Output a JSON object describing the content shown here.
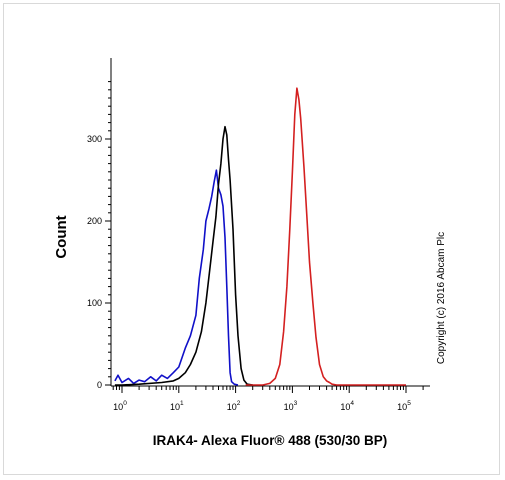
{
  "chart_data": {
    "type": "line",
    "xlabel": "IRAK4- Alexa Fluor® 488 (530/30 BP)",
    "ylabel": "Count",
    "x_scale": "log",
    "x_ticks": [
      {
        "value": 1,
        "base": "10",
        "exp": "0"
      },
      {
        "value": 10,
        "base": "10",
        "exp": "1"
      },
      {
        "value": 100,
        "base": "10",
        "exp": "2"
      },
      {
        "value": 1000,
        "base": "10",
        "exp": "3"
      },
      {
        "value": 10000,
        "base": "10",
        "exp": "4"
      },
      {
        "value": 100000,
        "base": "10",
        "exp": "5"
      }
    ],
    "y_ticks": [
      "0",
      "100",
      "200",
      "300"
    ],
    "ylim": [
      0,
      370
    ],
    "copyright": "Copyright (c) 2016 Abcam Plc",
    "series": [
      {
        "color": "#1010c8",
        "x": [
          0.75,
          0.85,
          1.0,
          1.3,
          1.6,
          2.0,
          2.5,
          3.2,
          4.0,
          5.0,
          6.3,
          8.0,
          10,
          13,
          16,
          20,
          23,
          27,
          30,
          34,
          38,
          42,
          46,
          50,
          55,
          60,
          65,
          70,
          75,
          80,
          85,
          95,
          110
        ],
        "y": [
          5,
          12,
          3,
          8,
          2,
          6,
          4,
          10,
          5,
          12,
          8,
          15,
          22,
          45,
          60,
          85,
          130,
          165,
          200,
          215,
          230,
          248,
          262,
          240,
          232,
          218,
          180,
          120,
          60,
          15,
          4,
          1,
          0
        ]
      },
      {
        "color": "#000000",
        "x": [
          0.75,
          1.0,
          2.0,
          5.0,
          8.0,
          10,
          13,
          16,
          20,
          25,
          30,
          35,
          40,
          45,
          50,
          55,
          60,
          65,
          70,
          75,
          80,
          90,
          100,
          110,
          125,
          140,
          160,
          200
        ],
        "y": [
          0,
          0,
          1,
          3,
          5,
          8,
          15,
          25,
          40,
          65,
          100,
          140,
          175,
          205,
          245,
          270,
          300,
          315,
          305,
          275,
          250,
          190,
          110,
          60,
          20,
          6,
          1,
          0
        ]
      },
      {
        "color": "#d42020",
        "x": [
          150,
          300,
          400,
          500,
          600,
          700,
          800,
          900,
          1000,
          1100,
          1200,
          1300,
          1400,
          1600,
          1800,
          2000,
          2300,
          2600,
          3000,
          3500,
          4000,
          4500,
          5000,
          6000,
          10000,
          100000
        ],
        "y": [
          0,
          0,
          2,
          8,
          25,
          65,
          120,
          190,
          260,
          330,
          362,
          348,
          325,
          265,
          205,
          150,
          100,
          58,
          25,
          10,
          5,
          3,
          1,
          0,
          0,
          0
        ]
      }
    ]
  }
}
